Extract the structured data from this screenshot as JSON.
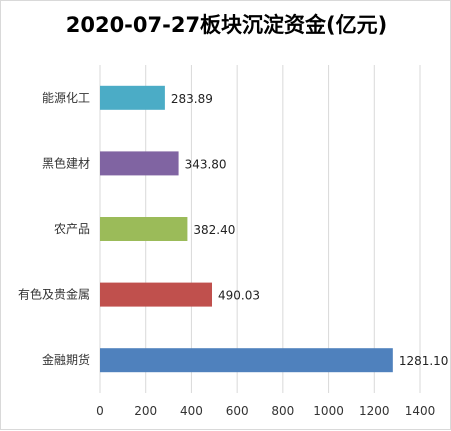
{
  "chart_data": {
    "type": "bar",
    "orientation": "horizontal",
    "title": "2020-07-27板块沉淀资金(亿元)",
    "categories": [
      "能源化工",
      "黑色建材",
      "农产品",
      "有色及贵金属",
      "金融期货"
    ],
    "values": [
      283.89,
      343.8,
      382.4,
      490.03,
      1281.1
    ],
    "value_labels": [
      "283.89",
      "343.80",
      "382.40",
      "490.03",
      "1281.10"
    ],
    "colors": [
      "#4bacc6",
      "#8064a2",
      "#9bbb59",
      "#c0504d",
      "#4f81bd"
    ],
    "xlim": [
      0,
      1400
    ],
    "xticks": [
      0,
      200,
      400,
      600,
      800,
      1000,
      1200,
      1400
    ],
    "grid": true,
    "legend": "none"
  }
}
